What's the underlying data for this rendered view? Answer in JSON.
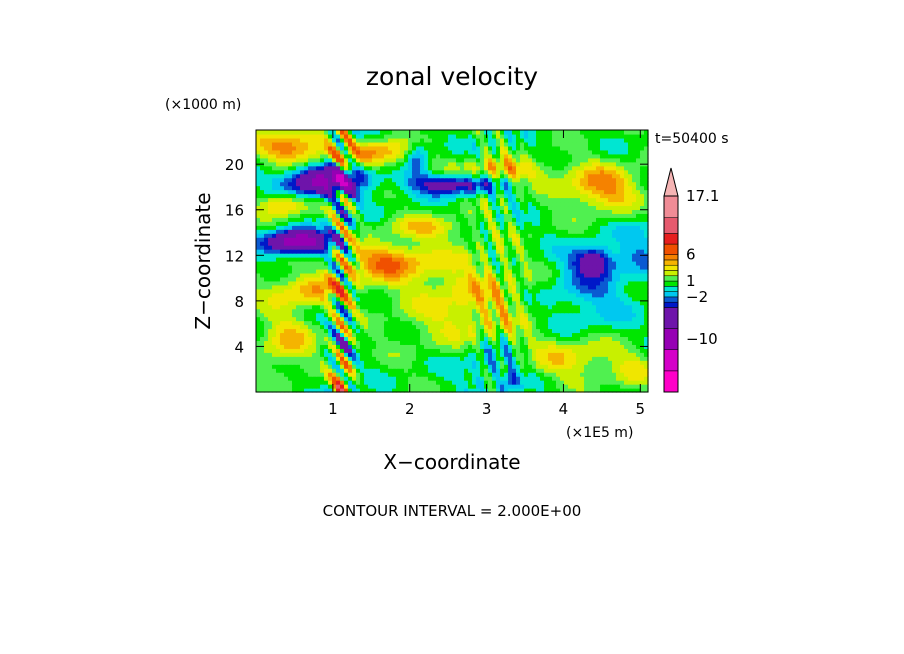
{
  "chart_data": {
    "type": "heatmap",
    "title": "zonal velocity",
    "time_label": "t=50400 s",
    "xlabel": "X−coordinate",
    "ylabel": "Z−coordinate",
    "x_units": "(×1E5 m)",
    "y_units": "(×1000 m)",
    "x_ticks": [
      "1",
      "2",
      "3",
      "4",
      "5"
    ],
    "y_ticks": [
      "4",
      "8",
      "12",
      "16",
      "20"
    ],
    "xlim": [
      0,
      5.1
    ],
    "ylim": [
      0,
      23
    ],
    "contour_interval": "CONTOUR INTERVAL = 2.000E+00",
    "colorbar": {
      "labels": [
        {
          "text": "17.1",
          "value": 17.1
        },
        {
          "text": "6",
          "value": 6
        },
        {
          "text": "1",
          "value": 1
        },
        {
          "text": "−2",
          "value": -2
        },
        {
          "text": "−10",
          "value": -10
        }
      ],
      "levels": [
        {
          "value": -20,
          "color": "#ff00c8"
        },
        {
          "value": -16,
          "color": "#d400c8"
        },
        {
          "value": -12,
          "color": "#9600b4"
        },
        {
          "value": -8,
          "color": "#6e14aa"
        },
        {
          "value": -4,
          "color": "#0018c8"
        },
        {
          "value": -3,
          "color": "#0a5ad2"
        },
        {
          "value": -2,
          "color": "#00c8f0"
        },
        {
          "value": -1,
          "color": "#00e6d2"
        },
        {
          "value": 0,
          "color": "#00e600"
        },
        {
          "value": 1,
          "color": "#50f050"
        },
        {
          "value": 2,
          "color": "#c8f000"
        },
        {
          "value": 3,
          "color": "#f0e600"
        },
        {
          "value": 4,
          "color": "#f5b400"
        },
        {
          "value": 5,
          "color": "#f58200"
        },
        {
          "value": 6,
          "color": "#f05000"
        },
        {
          "value": 8,
          "color": "#e61e1e"
        },
        {
          "value": 10,
          "color": "#e65a6e"
        },
        {
          "value": 13,
          "color": "#f08c96"
        },
        {
          "value": 17.1,
          "color": "#f5b4b4"
        }
      ],
      "max_arrow_color": "#f5b4b4"
    },
    "grid": false,
    "note": ""
  }
}
